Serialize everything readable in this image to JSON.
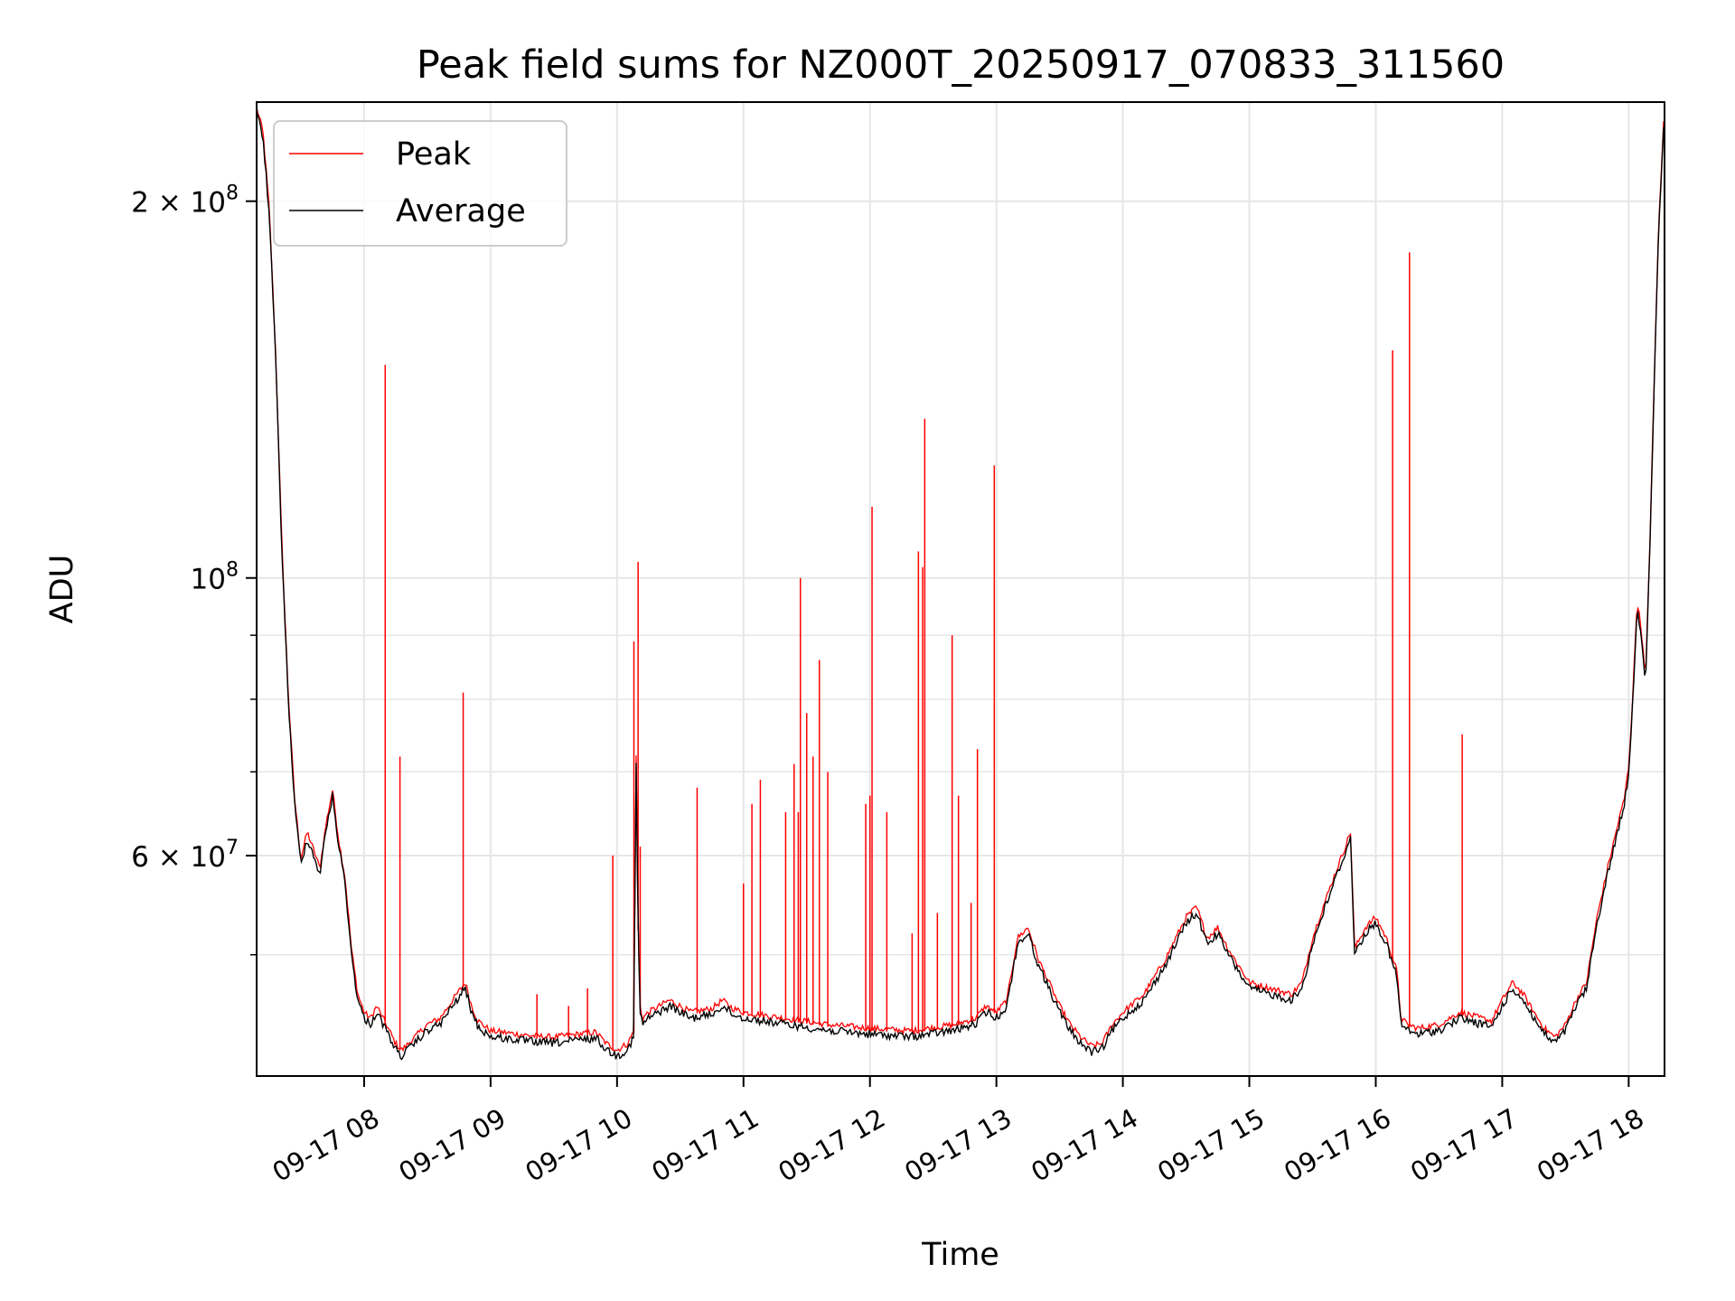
{
  "chart_data": {
    "type": "line",
    "title": "Peak field sums for NZ000T_20250917_070833_311560",
    "xlabel": "Time",
    "ylabel": "ADU",
    "y_scale": "log",
    "ylim": [
      40000000,
      240000000
    ],
    "xlim": [
      "09-17 07:09",
      "09-17 18:17"
    ],
    "grid": true,
    "legend_position": "top-left",
    "x_ticks": [
      {
        "value": "09-17 08:00",
        "label": "09-17 08"
      },
      {
        "value": "09-17 09:00",
        "label": "09-17 09"
      },
      {
        "value": "09-17 10:00",
        "label": "09-17 10"
      },
      {
        "value": "09-17 11:00",
        "label": "09-17 11"
      },
      {
        "value": "09-17 12:00",
        "label": "09-17 12"
      },
      {
        "value": "09-17 13:00",
        "label": "09-17 13"
      },
      {
        "value": "09-17 14:00",
        "label": "09-17 14"
      },
      {
        "value": "09-17 15:00",
        "label": "09-17 15"
      },
      {
        "value": "09-17 16:00",
        "label": "09-17 16"
      },
      {
        "value": "09-17 17:00",
        "label": "09-17 17"
      },
      {
        "value": "09-17 18:00",
        "label": "09-17 18"
      }
    ],
    "y_major_ticks": [
      {
        "value": 200000000,
        "mantissa": "2",
        "exponent": "8"
      },
      {
        "value": 100000000,
        "mantissa": "",
        "exponent": "8"
      },
      {
        "value": 60000000,
        "mantissa": "6",
        "exponent": "7"
      }
    ],
    "y_minor_ticks": [
      50000000,
      70000000,
      80000000,
      90000000
    ],
    "series": [
      {
        "name": "Average",
        "color": "#000000",
        "x": [
          "09-17 07:09",
          "09-17 07:12",
          "09-17 07:15",
          "09-17 07:18",
          "09-17 07:21",
          "09-17 07:24",
          "09-17 07:27",
          "09-17 07:30",
          "09-17 07:33",
          "09-17 07:36",
          "09-17 07:39",
          "09-17 07:42",
          "09-17 07:45",
          "09-17 07:48",
          "09-17 07:51",
          "09-17 07:54",
          "09-17 07:57",
          "09-17 08:00",
          "09-17 08:03",
          "09-17 08:06",
          "09-17 08:09",
          "09-17 08:12",
          "09-17 08:15",
          "09-17 08:18",
          "09-17 08:21",
          "09-17 08:24",
          "09-17 08:27",
          "09-17 08:30",
          "09-17 08:36",
          "09-17 08:42",
          "09-17 08:48",
          "09-17 08:51",
          "09-17 08:54",
          "09-17 09:00",
          "09-17 09:10",
          "09-17 09:20",
          "09-17 09:30",
          "09-17 09:40",
          "09-17 09:50",
          "09-17 09:55",
          "09-17 10:00",
          "09-17 10:05",
          "09-17 10:08",
          "09-17 10:09",
          "09-17 10:10",
          "09-17 10:11",
          "09-17 10:12",
          "09-17 10:15",
          "09-17 10:20",
          "09-17 10:25",
          "09-17 10:35",
          "09-17 10:45",
          "09-17 10:50",
          "09-17 10:55",
          "09-17 11:00",
          "09-17 11:20",
          "09-17 11:40",
          "09-17 12:00",
          "09-17 12:20",
          "09-17 12:40",
          "09-17 12:50",
          "09-17 12:55",
          "09-17 13:00",
          "09-17 13:05",
          "09-17 13:10",
          "09-17 13:15",
          "09-17 13:20",
          "09-17 13:25",
          "09-17 13:30",
          "09-17 13:35",
          "09-17 13:40",
          "09-17 13:45",
          "09-17 13:50",
          "09-17 13:55",
          "09-17 14:00",
          "09-17 14:10",
          "09-17 14:20",
          "09-17 14:30",
          "09-17 14:35",
          "09-17 14:40",
          "09-17 14:45",
          "09-17 14:50",
          "09-17 15:00",
          "09-17 15:10",
          "09-17 15:20",
          "09-17 15:25",
          "09-17 15:30",
          "09-17 15:35",
          "09-17 15:40",
          "09-17 15:45",
          "09-17 15:48",
          "09-17 15:50",
          "09-17 15:55",
          "09-17 16:00",
          "09-17 16:05",
          "09-17 16:10",
          "09-17 16:12",
          "09-17 16:15",
          "09-17 16:20",
          "09-17 16:30",
          "09-17 16:40",
          "09-17 16:50",
          "09-17 16:55",
          "09-17 17:00",
          "09-17 17:05",
          "09-17 17:10",
          "09-17 17:15",
          "09-17 17:20",
          "09-17 17:25",
          "09-17 17:30",
          "09-17 17:35",
          "09-17 17:40",
          "09-17 17:45",
          "09-17 17:50",
          "09-17 17:55",
          "09-17 17:58",
          "09-17 18:00",
          "09-17 18:02",
          "09-17 18:04",
          "09-17 18:06",
          "09-17 18:08",
          "09-17 18:10",
          "09-17 18:12",
          "09-17 18:14",
          "09-17 18:17"
        ],
        "values": [
          235000000,
          225000000,
          195000000,
          150000000,
          105000000,
          80000000,
          66000000,
          59000000,
          62000000,
          60000000,
          58000000,
          63000000,
          67000000,
          61000000,
          57000000,
          50000000,
          46000000,
          44500000,
          44000000,
          45000000,
          44000000,
          43000000,
          42000000,
          41500000,
          42000000,
          42500000,
          43000000,
          43500000,
          44000000,
          45500000,
          47000000,
          45000000,
          43800000,
          43000000,
          42800000,
          42600000,
          42500000,
          42700000,
          42900000,
          42000000,
          41500000,
          42000000,
          43000000,
          73000000,
          52000000,
          45000000,
          44000000,
          44500000,
          45000000,
          45500000,
          44500000,
          44800000,
          45500000,
          44800000,
          44500000,
          44000000,
          43500000,
          43200000,
          43000000,
          43500000,
          44000000,
          45000000,
          44500000,
          45500000,
          51000000,
          52000000,
          49000000,
          47000000,
          45000000,
          43500000,
          42500000,
          41800000,
          42000000,
          43500000,
          44500000,
          46000000,
          49000000,
          53000000,
          54000000,
          51000000,
          52000000,
          50000000,
          47000000,
          46500000,
          46000000,
          47000000,
          51000000,
          54000000,
          57000000,
          60000000,
          62000000,
          50000000,
          52000000,
          53000000,
          51000000,
          48000000,
          44000000,
          43500000,
          43200000,
          43500000,
          44500000,
          44000000,
          43800000,
          45500000,
          47000000,
          46000000,
          44500000,
          43200000,
          42500000,
          43500000,
          45500000,
          47000000,
          53000000,
          58000000,
          63000000,
          66000000,
          70000000,
          80000000,
          95000000,
          90000000,
          82000000,
          105000000,
          140000000,
          185000000,
          237000000
        ]
      },
      {
        "name": "Peak",
        "color": "#ff0000",
        "spikes": [
          {
            "x": "09-17 08:10",
            "value": 148000000
          },
          {
            "x": "09-17 08:17",
            "value": 72000000
          },
          {
            "x": "09-17 08:47",
            "value": 81000000
          },
          {
            "x": "09-17 09:22",
            "value": 46500000
          },
          {
            "x": "09-17 09:37",
            "value": 45500000
          },
          {
            "x": "09-17 09:46",
            "value": 47000000
          },
          {
            "x": "09-17 09:58",
            "value": 60000000
          },
          {
            "x": "09-17 10:08",
            "value": 89000000
          },
          {
            "x": "09-17 10:10",
            "value": 103000000
          },
          {
            "x": "09-17 10:11",
            "value": 61000000
          },
          {
            "x": "09-17 10:38",
            "value": 68000000
          },
          {
            "x": "09-17 11:00",
            "value": 57000000
          },
          {
            "x": "09-17 11:04",
            "value": 66000000
          },
          {
            "x": "09-17 11:08",
            "value": 69000000
          },
          {
            "x": "09-17 11:20",
            "value": 65000000
          },
          {
            "x": "09-17 11:24",
            "value": 71000000
          },
          {
            "x": "09-17 11:26",
            "value": 65000000
          },
          {
            "x": "09-17 11:27",
            "value": 100000000
          },
          {
            "x": "09-17 11:30",
            "value": 78000000
          },
          {
            "x": "09-17 11:33",
            "value": 72000000
          },
          {
            "x": "09-17 11:36",
            "value": 86000000
          },
          {
            "x": "09-17 11:40",
            "value": 70000000
          },
          {
            "x": "09-17 11:58",
            "value": 66000000
          },
          {
            "x": "09-17 12:00",
            "value": 67000000
          },
          {
            "x": "09-17 12:01",
            "value": 114000000
          },
          {
            "x": "09-17 12:08",
            "value": 65000000
          },
          {
            "x": "09-17 12:20",
            "value": 52000000
          },
          {
            "x": "09-17 12:23",
            "value": 105000000
          },
          {
            "x": "09-17 12:25",
            "value": 102000000
          },
          {
            "x": "09-17 12:26",
            "value": 134000000
          },
          {
            "x": "09-17 12:32",
            "value": 54000000
          },
          {
            "x": "09-17 12:39",
            "value": 90000000
          },
          {
            "x": "09-17 12:42",
            "value": 67000000
          },
          {
            "x": "09-17 12:48",
            "value": 55000000
          },
          {
            "x": "09-17 12:51",
            "value": 73000000
          },
          {
            "x": "09-17 12:59",
            "value": 123000000
          },
          {
            "x": "09-17 16:08",
            "value": 152000000
          },
          {
            "x": "09-17 16:16",
            "value": 182000000
          },
          {
            "x": "09-17 16:41",
            "value": 75000000
          }
        ]
      }
    ]
  }
}
